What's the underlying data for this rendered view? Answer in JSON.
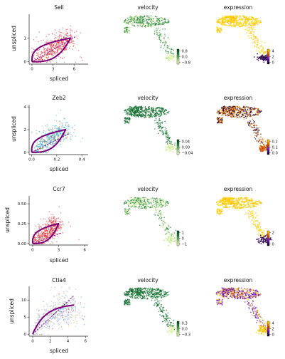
{
  "colors": {
    "scatter_palette": [
      "#e3212b",
      "#1ea8d8",
      "#f2a24b",
      "#2ca25f",
      "#9aa8d6",
      "#f0c000",
      "#b45bd4",
      "#8c9a2e"
    ],
    "fit_curve": "#7b007b",
    "steady_state": "#7b007b",
    "velocity_cmap": [
      "#00441b",
      "#1a7a3b",
      "#5dad5b",
      "#c6e89c",
      "#ffffcc"
    ],
    "expression_cmap": [
      "#0b0014",
      "#3d0a6b",
      "#8a1be0",
      "#c24700",
      "#ff8c00",
      "#ffe600"
    ]
  },
  "chart_data": [
    {
      "type": "scatter",
      "gene": "Sell",
      "title": "Sell",
      "xlabel": "spliced",
      "ylabel": "unspliced",
      "xlim": [
        -0.4,
        8.0
      ],
      "ylim": [
        -0.1,
        2.0
      ],
      "xticks": [
        0,
        3,
        6
      ],
      "yticks": [
        0,
        1
      ],
      "xtick_labels": [
        "0",
        "3",
        "6"
      ],
      "ytick_labels": [
        "0",
        "1"
      ],
      "dominant_color": "#e3212b",
      "colored_fraction": 0.85,
      "curve": {
        "s_max": 5.5,
        "u_max": 1.0,
        "shape": "loop"
      },
      "steady_state_line": {
        "slope": 0.17,
        "x_max": 6.2
      }
    },
    {
      "type": "embedding",
      "gene": "Sell",
      "title": "velocity",
      "cmap": "velocity",
      "pattern": "mixed",
      "colorbar_ticks": [
        0.8,
        0.0,
        -0.8
      ],
      "colorbar_labels": [
        "0.8",
        "0.0",
        "−0.8"
      ]
    },
    {
      "type": "embedding",
      "gene": "Sell",
      "title": "expression",
      "cmap": "expression",
      "pattern": "high_main",
      "colorbar_ticks": [
        4,
        2,
        0
      ],
      "colorbar_labels": [
        "4",
        "2",
        "0"
      ]
    },
    {
      "type": "scatter",
      "gene": "Zeb2",
      "title": "Zeb2",
      "xlabel": "spliced",
      "ylabel": "unspliced",
      "xlim": [
        -0.02,
        0.45
      ],
      "ylim": [
        -0.2,
        4.2
      ],
      "xticks": [
        0.0,
        0.2,
        0.4
      ],
      "yticks": [
        0,
        2,
        4
      ],
      "xtick_labels": [
        "0.0",
        "0.2",
        "0.4"
      ],
      "ytick_labels": [
        "0",
        "2",
        "4"
      ],
      "dominant_color": "#1ea8d8",
      "colored_fraction": 0.55,
      "curve": {
        "s_max": 0.27,
        "u_max": 2.0,
        "shape": "loop"
      },
      "steady_state_line": {
        "slope": 5.5,
        "x_max": 0.3
      }
    },
    {
      "type": "embedding",
      "gene": "Zeb2",
      "title": "velocity",
      "cmap": "velocity",
      "pattern": "all_dark",
      "colorbar_ticks": [
        0.04,
        0.0,
        -0.04
      ],
      "colorbar_labels": [
        "0.04",
        "0.00",
        "−0.04"
      ]
    },
    {
      "type": "embedding",
      "gene": "Zeb2",
      "title": "expression",
      "cmap": "expression",
      "pattern": "dark_mixed",
      "colorbar_ticks": [
        0.2,
        0.1,
        0.0
      ],
      "colorbar_labels": [
        "0.2",
        "0.1",
        "0.0"
      ]
    },
    {
      "type": "scatter",
      "gene": "Ccr7",
      "title": "Ccr7",
      "xlabel": "spliced",
      "ylabel": "unspliced",
      "xlim": [
        -0.4,
        6.4
      ],
      "ylim": [
        -0.02,
        0.6
      ],
      "xticks": [
        0,
        3,
        6
      ],
      "yticks": [
        0.0,
        0.25,
        0.5
      ],
      "xtick_labels": [
        "0",
        "3",
        "6"
      ],
      "ytick_labels": [
        "0.00",
        "0.25",
        "0.50"
      ],
      "dominant_color": "#e3212b",
      "colored_fraction": 0.9,
      "curve": {
        "s_max": 3.0,
        "u_max": 0.25,
        "shape": "loop"
      },
      "steady_state_line": {
        "slope": 0.04,
        "x_max": 3.4
      }
    },
    {
      "type": "embedding",
      "gene": "Ccr7",
      "title": "velocity",
      "cmap": "velocity",
      "pattern": "light_mixed",
      "colorbar_ticks": [
        1,
        0,
        -1
      ],
      "colorbar_labels": [
        "1",
        "0",
        "−1"
      ]
    },
    {
      "type": "embedding",
      "gene": "Ccr7",
      "title": "expression",
      "cmap": "expression",
      "pattern": "high_main",
      "colorbar_ticks": [
        2,
        0
      ],
      "colorbar_labels": [
        "2",
        "0"
      ]
    },
    {
      "type": "scatter",
      "gene": "Ctla4",
      "title": "Ctla4",
      "xlabel": "spliced",
      "ylabel": "unspliced",
      "xlim": [
        -0.4,
        6.3
      ],
      "ylim": [
        -0.6,
        14.0
      ],
      "xticks": [
        0,
        2,
        4,
        6
      ],
      "yticks": [
        0,
        5,
        10
      ],
      "xtick_labels": [
        "0",
        "2",
        "4",
        "6"
      ],
      "ytick_labels": [
        "0",
        "5",
        "10"
      ],
      "dominant_color": "#9aa8d6",
      "colored_fraction": 0.7,
      "curve": {
        "s_max": 4.7,
        "u_max": 8.5,
        "shape": "saturating"
      },
      "steady_state_line": {
        "slope": 2.4,
        "x_max": 4.7
      }
    },
    {
      "type": "embedding",
      "gene": "Ctla4",
      "title": "velocity",
      "cmap": "velocity",
      "pattern": "dark_main",
      "colorbar_ticks": [
        0.3,
        0.0,
        -0.3
      ],
      "colorbar_labels": [
        "0.3",
        "0.0",
        "−0.3"
      ]
    },
    {
      "type": "embedding",
      "gene": "Ctla4",
      "title": "expression",
      "cmap": "expression",
      "pattern": "purple_main",
      "colorbar_ticks": [
        4,
        2,
        0
      ],
      "colorbar_labels": [
        "4",
        "2",
        "0"
      ]
    }
  ]
}
